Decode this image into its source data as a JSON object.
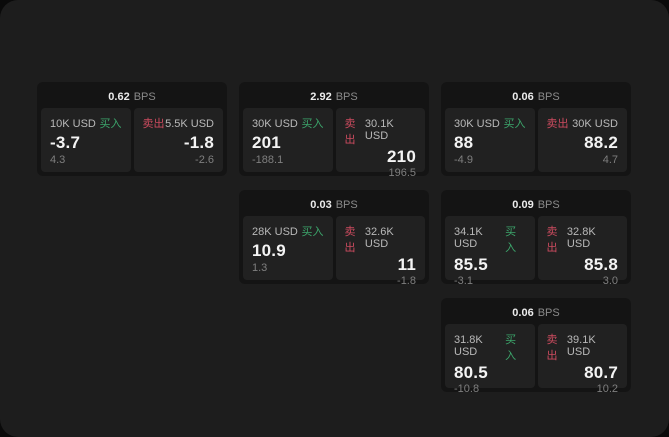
{
  "labels": {
    "bps_suffix": "BPS",
    "buy": "买入",
    "sell": "卖出"
  },
  "colors": {
    "buy_green": "#3ca56b",
    "sell_red": "#cc4b5f",
    "window_bg": "#1d1d1d",
    "card_bg": "#141414",
    "panel_bg": "#212121"
  },
  "cards": [
    {
      "bps": "0.62",
      "buy": {
        "amount": "10K USD",
        "price": "-3.7",
        "delta": "4.3"
      },
      "sell": {
        "amount": "5.5K USD",
        "price": "-1.8",
        "delta": "-2.6"
      }
    },
    {
      "bps": "2.92",
      "buy": {
        "amount": "30K USD",
        "price": "201",
        "delta": "-188.1"
      },
      "sell": {
        "amount": "30.1K USD",
        "price": "210",
        "delta": "196.5"
      }
    },
    {
      "bps": "0.06",
      "buy": {
        "amount": "30K USD",
        "price": "88",
        "delta": "-4.9"
      },
      "sell": {
        "amount": "30K USD",
        "price": "88.2",
        "delta": "4.7"
      }
    },
    {
      "bps": "0.03",
      "buy": {
        "amount": "28K USD",
        "price": "10.9",
        "delta": "1.3"
      },
      "sell": {
        "amount": "32.6K USD",
        "price": "11",
        "delta": "-1.8"
      }
    },
    {
      "bps": "0.09",
      "buy": {
        "amount": "34.1K USD",
        "price": "85.5",
        "delta": "-3.1"
      },
      "sell": {
        "amount": "32.8K USD",
        "price": "85.8",
        "delta": "3.0"
      }
    },
    {
      "bps": "0.06",
      "buy": {
        "amount": "31.8K USD",
        "price": "80.5",
        "delta": "-10.8"
      },
      "sell": {
        "amount": "39.1K USD",
        "price": "80.7",
        "delta": "10.2"
      }
    }
  ]
}
